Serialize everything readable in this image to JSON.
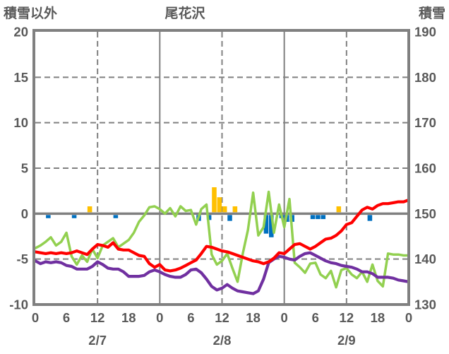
{
  "header": {
    "left_axis_title": "積雪以外",
    "chart_title": "尾花沢",
    "right_axis_title": "積雪"
  },
  "colors": {
    "axis_gray": "#808080",
    "text_gray": "#595959",
    "red_line": "#FF0000",
    "purple_line": "#7030A0",
    "green_line": "#92D050",
    "orange_bar": "#FFC000",
    "blue_bar": "#0070C0",
    "background": "#FFFFFF"
  },
  "chart_data": {
    "type": "line+bar",
    "title": "尾花沢",
    "x_unit": "hours since 2/7 00:00",
    "x_range_hours": [
      0,
      72
    ],
    "hour_tick_hours": [
      0,
      6,
      12,
      18,
      24,
      30,
      36,
      42,
      48,
      54,
      60,
      66,
      72
    ],
    "hour_tick_labels": [
      "0",
      "6",
      "12",
      "18",
      "0",
      "6",
      "12",
      "18",
      "0",
      "6",
      "12",
      "18",
      "0"
    ],
    "date_labels": [
      {
        "label": "2/7",
        "hour": 12
      },
      {
        "label": "2/8",
        "hour": 36
      },
      {
        "label": "2/9",
        "hour": 60
      }
    ],
    "left_axis": {
      "title": "積雪以外",
      "min": -10,
      "max": 20,
      "ticks": [
        20,
        15,
        10,
        5,
        0,
        -5,
        -10
      ]
    },
    "right_axis": {
      "title": "積雪",
      "min": 130,
      "max": 190,
      "ticks": [
        190,
        180,
        170,
        160,
        150,
        140,
        130
      ]
    },
    "gridlines": {
      "horizontal_dashed_values": [
        15,
        10,
        5,
        -5
      ],
      "horizontal_solid_values": [
        0
      ],
      "vertical_solid_hours": [
        24,
        48
      ],
      "vertical_dashed_hours": [
        12,
        36,
        60
      ]
    },
    "series": [
      {
        "name": "green-line",
        "type": "line",
        "axis": "left",
        "color": "#92D050",
        "values": [
          -3.8,
          -3.5,
          -3.1,
          -2.6,
          -3.5,
          -3.1,
          -2.1,
          -4.7,
          -5.6,
          -4.6,
          -5.3,
          -3.9,
          -4.9,
          -3.5,
          -3.1,
          -2.7,
          -3.7,
          -3.3,
          -2.9,
          -2.1,
          -0.9,
          -0.2,
          0.7,
          0.8,
          0.5,
          0.0,
          0.6,
          -0.3,
          0.8,
          0.3,
          0.4,
          -1.2,
          0.5,
          1.0,
          -4.5,
          -5.6,
          -5.2,
          -4.4,
          -6.0,
          -7.5,
          -4.4,
          -1.8,
          2.3,
          -2.4,
          -1.5,
          2.4,
          -2.1,
          1.0,
          -1.5,
          1.6,
          -5.4,
          -5.9,
          -6.5,
          -5.5,
          -5.4,
          -6.7,
          -7.1,
          -6.3,
          -8.1,
          -6.2,
          -6.0,
          -6.7,
          -7.1,
          -6.4,
          -7.5,
          -5.6,
          -7.4,
          -8.0,
          -4.4,
          -4.5,
          -4.5,
          -4.6,
          -4.6
        ]
      },
      {
        "name": "purple-line",
        "type": "line",
        "axis": "left",
        "color": "#7030A0",
        "values": [
          -5.2,
          -5.5,
          -5.3,
          -5.4,
          -5.3,
          -5.4,
          -5.7,
          -5.8,
          -6.1,
          -6.1,
          -6.1,
          -5.8,
          -5.3,
          -5.6,
          -6.0,
          -6.1,
          -6.1,
          -6.4,
          -6.9,
          -6.9,
          -6.9,
          -6.8,
          -6.4,
          -6.2,
          -6.4,
          -6.7,
          -6.9,
          -7.0,
          -7.0,
          -6.7,
          -6.2,
          -6.1,
          -6.5,
          -7.2,
          -8.0,
          -8.4,
          -8.2,
          -7.8,
          -8.2,
          -8.5,
          -8.6,
          -8.7,
          -8.8,
          -8.5,
          -7.2,
          -5.4,
          -5.0,
          -4.7,
          -4.8,
          -5.0,
          -5.1,
          -4.7,
          -4.4,
          -4.3,
          -4.6,
          -4.9,
          -5.2,
          -5.4,
          -5.5,
          -5.7,
          -5.8,
          -5.9,
          -6.1,
          -6.4,
          -6.4,
          -6.6,
          -7.0,
          -7.0,
          -7.0,
          -7.1,
          -7.3,
          -7.4,
          -7.5
        ]
      },
      {
        "name": "red-line",
        "type": "line",
        "axis": "left",
        "color": "#FF0000",
        "values": [
          -4.2,
          -4.3,
          -4.4,
          -4.3,
          -4.4,
          -4.3,
          -4.4,
          -4.3,
          -4.1,
          -4.3,
          -4.5,
          -3.9,
          -3.4,
          -3.5,
          -3.7,
          -3.2,
          -3.9,
          -4.0,
          -4.0,
          -4.3,
          -4.6,
          -4.7,
          -5.5,
          -5.9,
          -5.6,
          -6.2,
          -6.3,
          -6.2,
          -6.0,
          -5.7,
          -5.4,
          -5.1,
          -4.4,
          -3.6,
          -3.7,
          -3.9,
          -4.1,
          -4.2,
          -4.4,
          -4.6,
          -4.8,
          -5.0,
          -5.2,
          -5.3,
          -5.5,
          -5.3,
          -4.9,
          -4.3,
          -4.4,
          -3.9,
          -3.4,
          -3.3,
          -3.6,
          -3.9,
          -3.6,
          -3.2,
          -2.8,
          -2.7,
          -2.4,
          -1.9,
          -1.2,
          -1.0,
          -0.3,
          0.4,
          0.7,
          0.5,
          0.9,
          1.1,
          1.1,
          1.2,
          1.3,
          1.3,
          1.5
        ]
      }
    ],
    "bars": [
      {
        "name": "orange-bars",
        "axis": "left",
        "color": "#FFC000",
        "points": [
          {
            "hour": 10,
            "value": 0.8
          },
          {
            "hour": 34,
            "value": 2.9
          },
          {
            "hour": 35,
            "value": 1.8
          },
          {
            "hour": 36,
            "value": 0.8
          },
          {
            "hour": 38,
            "value": 0.8
          },
          {
            "hour": 58,
            "value": 0.8
          }
        ]
      },
      {
        "name": "blue-bars",
        "axis": "left",
        "color": "#0070C0",
        "points": [
          {
            "hour": 2,
            "value": -0.5
          },
          {
            "hour": 7,
            "value": -0.5
          },
          {
            "hour": 15,
            "value": -0.5
          },
          {
            "hour": 31,
            "value": -0.8
          },
          {
            "hour": 33,
            "value": -0.7
          },
          {
            "hour": 37,
            "value": -0.8
          },
          {
            "hour": 44,
            "value": -2.2
          },
          {
            "hour": 45,
            "value": -2.6
          },
          {
            "hour": 47,
            "value": -0.5
          },
          {
            "hour": 48,
            "value": -0.9
          },
          {
            "hour": 49,
            "value": -0.9
          },
          {
            "hour": 53,
            "value": -0.6
          },
          {
            "hour": 54,
            "value": -0.6
          },
          {
            "hour": 55,
            "value": -0.6
          },
          {
            "hour": 64,
            "value": -0.8
          }
        ]
      }
    ]
  }
}
